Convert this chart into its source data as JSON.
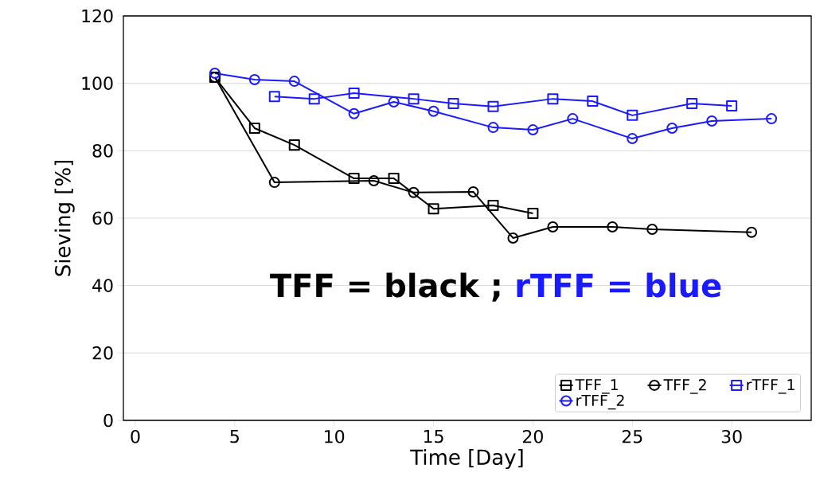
{
  "chart_data": {
    "type": "line",
    "xlabel": "Time [Day]",
    "ylabel": "Sieving [%]",
    "xlim": [
      -0.6,
      34
    ],
    "ylim": [
      0,
      120
    ],
    "xticks": [
      0,
      5,
      10,
      15,
      20,
      25,
      30
    ],
    "yticks": [
      0,
      20,
      40,
      60,
      80,
      100,
      120
    ],
    "grid": "y",
    "legend": "bottom right",
    "line_style": "solid",
    "annotations": [
      "TFF = black ;",
      "rTFF = blue"
    ],
    "series": [
      {
        "name": "TFF_1",
        "color": "#000000",
        "marker": "square",
        "x": [
          4,
          6,
          8,
          11,
          13,
          15,
          18,
          20
        ],
        "values": [
          101.8,
          86.7,
          81.7,
          71.8,
          71.8,
          62.8,
          63.8,
          61.4
        ]
      },
      {
        "name": "TFF_2",
        "color": "#000000",
        "marker": "circle",
        "x": [
          4,
          7,
          12,
          14,
          17,
          19,
          21,
          24,
          26,
          31
        ],
        "values": [
          101.8,
          70.6,
          71.1,
          67.6,
          67.8,
          54.1,
          57.4,
          57.4,
          56.7,
          55.8
        ]
      },
      {
        "name": "rTFF_1",
        "color": "#1a1aff",
        "marker": "square",
        "x": [
          7,
          9,
          11,
          14,
          16,
          18,
          21,
          23,
          25,
          28,
          30
        ],
        "values": [
          96.1,
          95.4,
          97.1,
          95.4,
          94.0,
          93.1,
          95.4,
          94.7,
          90.5,
          94.0,
          93.3
        ]
      },
      {
        "name": "rTFF_2",
        "color": "#1a1aff",
        "marker": "circle",
        "x": [
          4,
          6,
          8,
          11,
          13,
          15,
          18,
          20,
          22,
          25,
          27,
          29,
          32
        ],
        "values": [
          103.0,
          101.1,
          100.6,
          91.0,
          94.5,
          91.7,
          86.9,
          86.2,
          89.5,
          83.6,
          86.7,
          88.8,
          89.5
        ]
      }
    ]
  }
}
